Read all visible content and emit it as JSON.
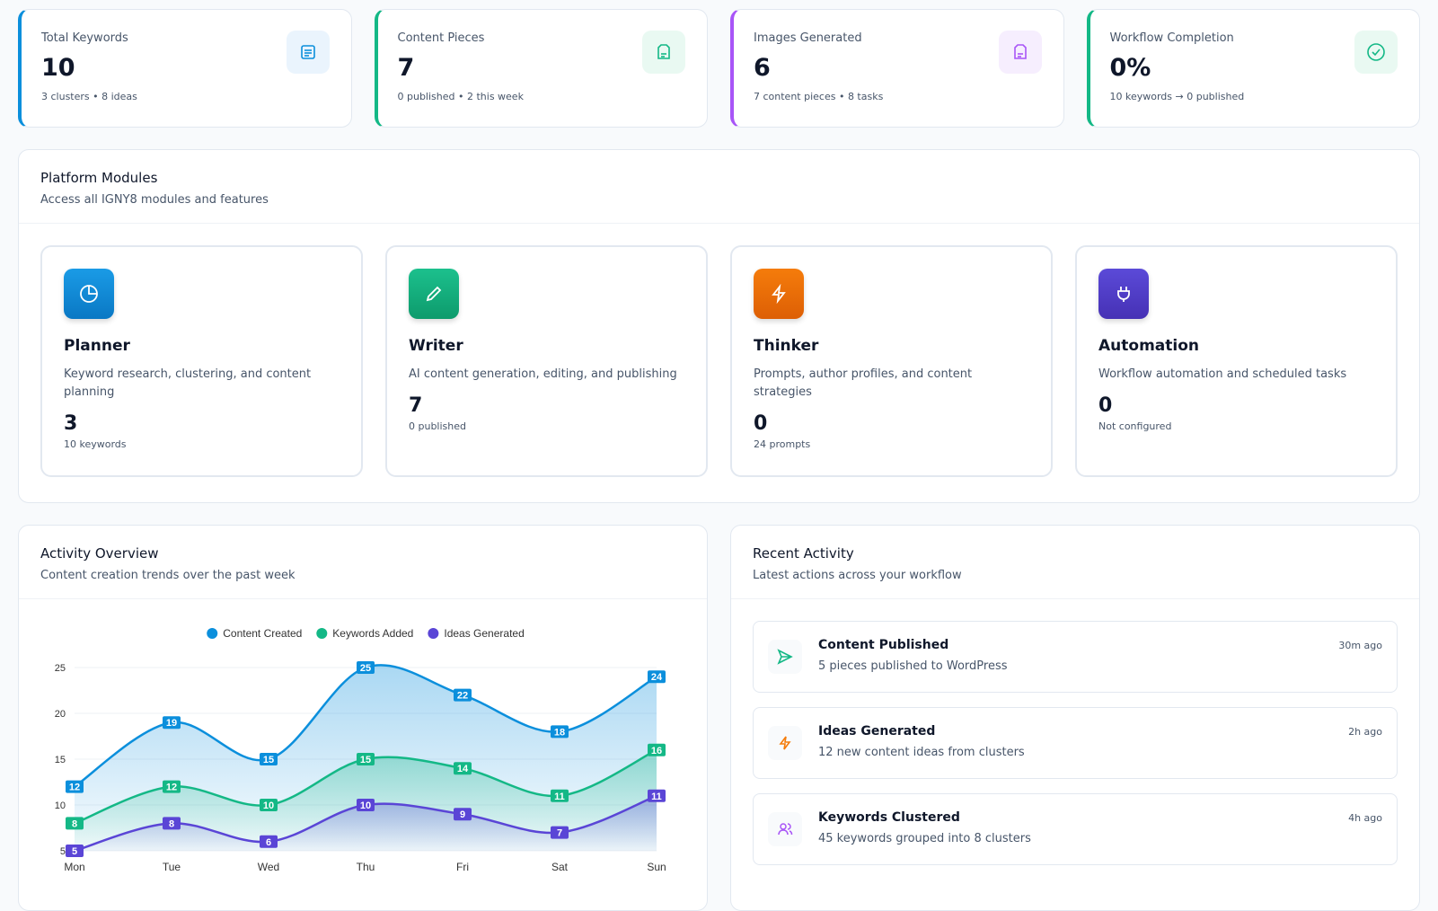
{
  "stats": [
    {
      "label": "Total Keywords",
      "value": "10",
      "sub": "3 clusters • 8 ideas"
    },
    {
      "label": "Content Pieces",
      "value": "7",
      "sub": "0 published • 2 this week"
    },
    {
      "label": "Images Generated",
      "value": "6",
      "sub": "7 content pieces • 8 tasks"
    },
    {
      "label": "Workflow Completion",
      "value": "0%",
      "sub": "10 keywords → 0 published"
    }
  ],
  "modules": {
    "title": "Platform Modules",
    "subtitle": "Access all IGNY8 modules and features",
    "items": [
      {
        "name": "Planner",
        "description": "Keyword research, clustering, and content planning",
        "value": "3",
        "sub": "10 keywords"
      },
      {
        "name": "Writer",
        "description": "AI content generation, editing, and publishing",
        "value": "7",
        "sub": "0 published"
      },
      {
        "name": "Thinker",
        "description": "Prompts, author profiles, and content strategies",
        "value": "0",
        "sub": "24 prompts"
      },
      {
        "name": "Automation",
        "description": "Workflow automation and scheduled tasks",
        "value": "0",
        "sub": "Not configured"
      }
    ]
  },
  "activity": {
    "title": "Activity Overview",
    "subtitle": "Content creation trends over the past week"
  },
  "chart_data": {
    "type": "area",
    "categories": [
      "Mon",
      "Tue",
      "Wed",
      "Thu",
      "Fri",
      "Sat",
      "Sun"
    ],
    "series": [
      {
        "name": "Content Created",
        "color": "#0b8fdc",
        "values": [
          12,
          19,
          15,
          25,
          22,
          18,
          24
        ]
      },
      {
        "name": "Keywords Added",
        "color": "#14b886",
        "values": [
          8,
          12,
          10,
          15,
          14,
          11,
          16
        ]
      },
      {
        "name": "Ideas Generated",
        "color": "#5a45d6",
        "values": [
          5,
          8,
          6,
          10,
          9,
          7,
          11
        ]
      }
    ],
    "ylim": [
      5,
      25
    ],
    "yticks": [
      5,
      10,
      15,
      20,
      25
    ],
    "grid": true,
    "legend": "top"
  },
  "recent": {
    "title": "Recent Activity",
    "subtitle": "Latest actions across your workflow",
    "items": [
      {
        "title": "Content Published",
        "description": "5 pieces published to WordPress",
        "time": "30m ago"
      },
      {
        "title": "Ideas Generated",
        "description": "12 new content ideas from clusters",
        "time": "2h ago"
      },
      {
        "title": "Keywords Clustered",
        "description": "45 keywords grouped into 8 clusters",
        "time": "4h ago"
      }
    ]
  }
}
